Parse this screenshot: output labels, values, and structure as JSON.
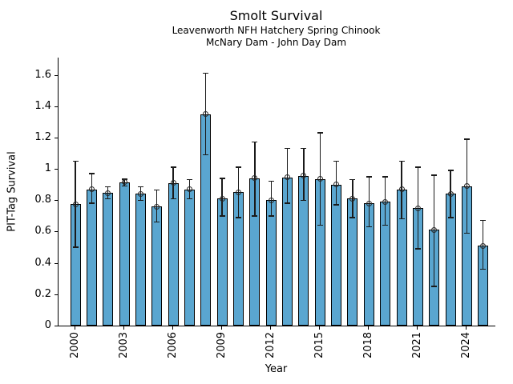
{
  "chart_data": {
    "type": "bar",
    "title": "Smolt Survival",
    "subtitle_line1": "Leavenworth NFH Hatchery Spring Chinook",
    "subtitle_line2": "McNary Dam - John Day Dam",
    "xlabel": "Year",
    "ylabel": "PIT-Tag Survival",
    "categories": [
      2000,
      2001,
      2002,
      2003,
      2004,
      2005,
      2006,
      2007,
      2008,
      2009,
      2010,
      2011,
      2012,
      2013,
      2014,
      2015,
      2016,
      2017,
      2018,
      2019,
      2020,
      2021,
      2022,
      2023,
      2024,
      2025
    ],
    "values": [
      0.775,
      0.87,
      0.845,
      0.915,
      0.84,
      0.76,
      0.91,
      0.87,
      1.35,
      0.81,
      0.85,
      0.94,
      0.8,
      0.945,
      0.955,
      0.935,
      0.9,
      0.81,
      0.78,
      0.79,
      0.87,
      0.75,
      0.61,
      0.84,
      0.89,
      0.51
    ],
    "error_low": [
      0.5,
      0.78,
      0.81,
      0.89,
      0.8,
      0.66,
      0.81,
      0.81,
      1.09,
      0.7,
      0.69,
      0.7,
      0.7,
      0.78,
      0.8,
      0.64,
      0.77,
      0.69,
      0.63,
      0.64,
      0.68,
      0.49,
      0.25,
      0.69,
      0.59,
      0.36
    ],
    "error_high": [
      1.05,
      0.97,
      0.885,
      0.935,
      0.885,
      0.865,
      1.01,
      0.93,
      1.61,
      0.94,
      1.01,
      1.17,
      0.92,
      1.13,
      1.13,
      1.23,
      1.05,
      0.93,
      0.95,
      0.95,
      1.05,
      1.01,
      0.96,
      0.99,
      1.19,
      0.67
    ],
    "yticks": [
      0,
      0.2,
      0.4,
      0.6,
      0.8,
      1,
      1.2,
      1.4,
      1.6
    ],
    "ytick_labels": [
      "0",
      "0.2",
      "0.4",
      "0.6",
      "0.8",
      "1",
      "1.2",
      "1.4",
      "1.6"
    ],
    "xtick_labels": [
      "2000",
      "2003",
      "2006",
      "2009",
      "2012",
      "2015",
      "2018",
      "2021",
      "2024"
    ],
    "ylim": [
      0,
      1.71
    ],
    "grid": false,
    "legend": null,
    "marker": "open-circle",
    "bar_color": "#5AA6D0",
    "bar_edge_color": "#000000",
    "error_color": "#1a1a1a"
  }
}
